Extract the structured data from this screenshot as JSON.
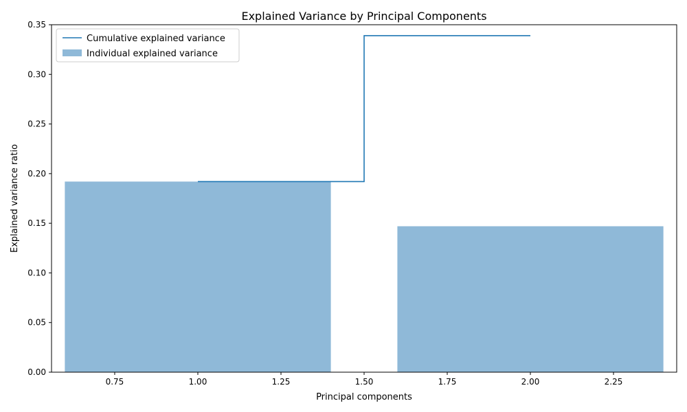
{
  "chart_data": {
    "type": "bar",
    "title": "Explained Variance by Principal Components",
    "xlabel": "Principal components",
    "ylabel": "Explained variance ratio",
    "xlim": [
      0.56,
      2.44
    ],
    "ylim": [
      0,
      0.35
    ],
    "x_ticks": [
      0.75,
      1.0,
      1.25,
      1.5,
      1.75,
      2.0,
      2.25
    ],
    "x_tick_labels": [
      "0.75",
      "1.00",
      "1.25",
      "1.50",
      "1.75",
      "2.00",
      "2.25"
    ],
    "y_ticks": [
      0.0,
      0.05,
      0.1,
      0.15,
      0.2,
      0.25,
      0.3,
      0.35
    ],
    "y_tick_labels": [
      "0.00",
      "0.05",
      "0.10",
      "0.15",
      "0.20",
      "0.25",
      "0.30",
      "0.35"
    ],
    "grid": false,
    "legend_position": "top-left",
    "bars": {
      "name": "Individual explained variance",
      "x": [
        1,
        2
      ],
      "values": [
        0.192,
        0.147
      ],
      "color": "#8fb9d8"
    },
    "step_line": {
      "name": "Cumulative explained variance",
      "x": [
        1,
        2
      ],
      "values": [
        0.192,
        0.339
      ],
      "color": "#1f77b4"
    }
  }
}
